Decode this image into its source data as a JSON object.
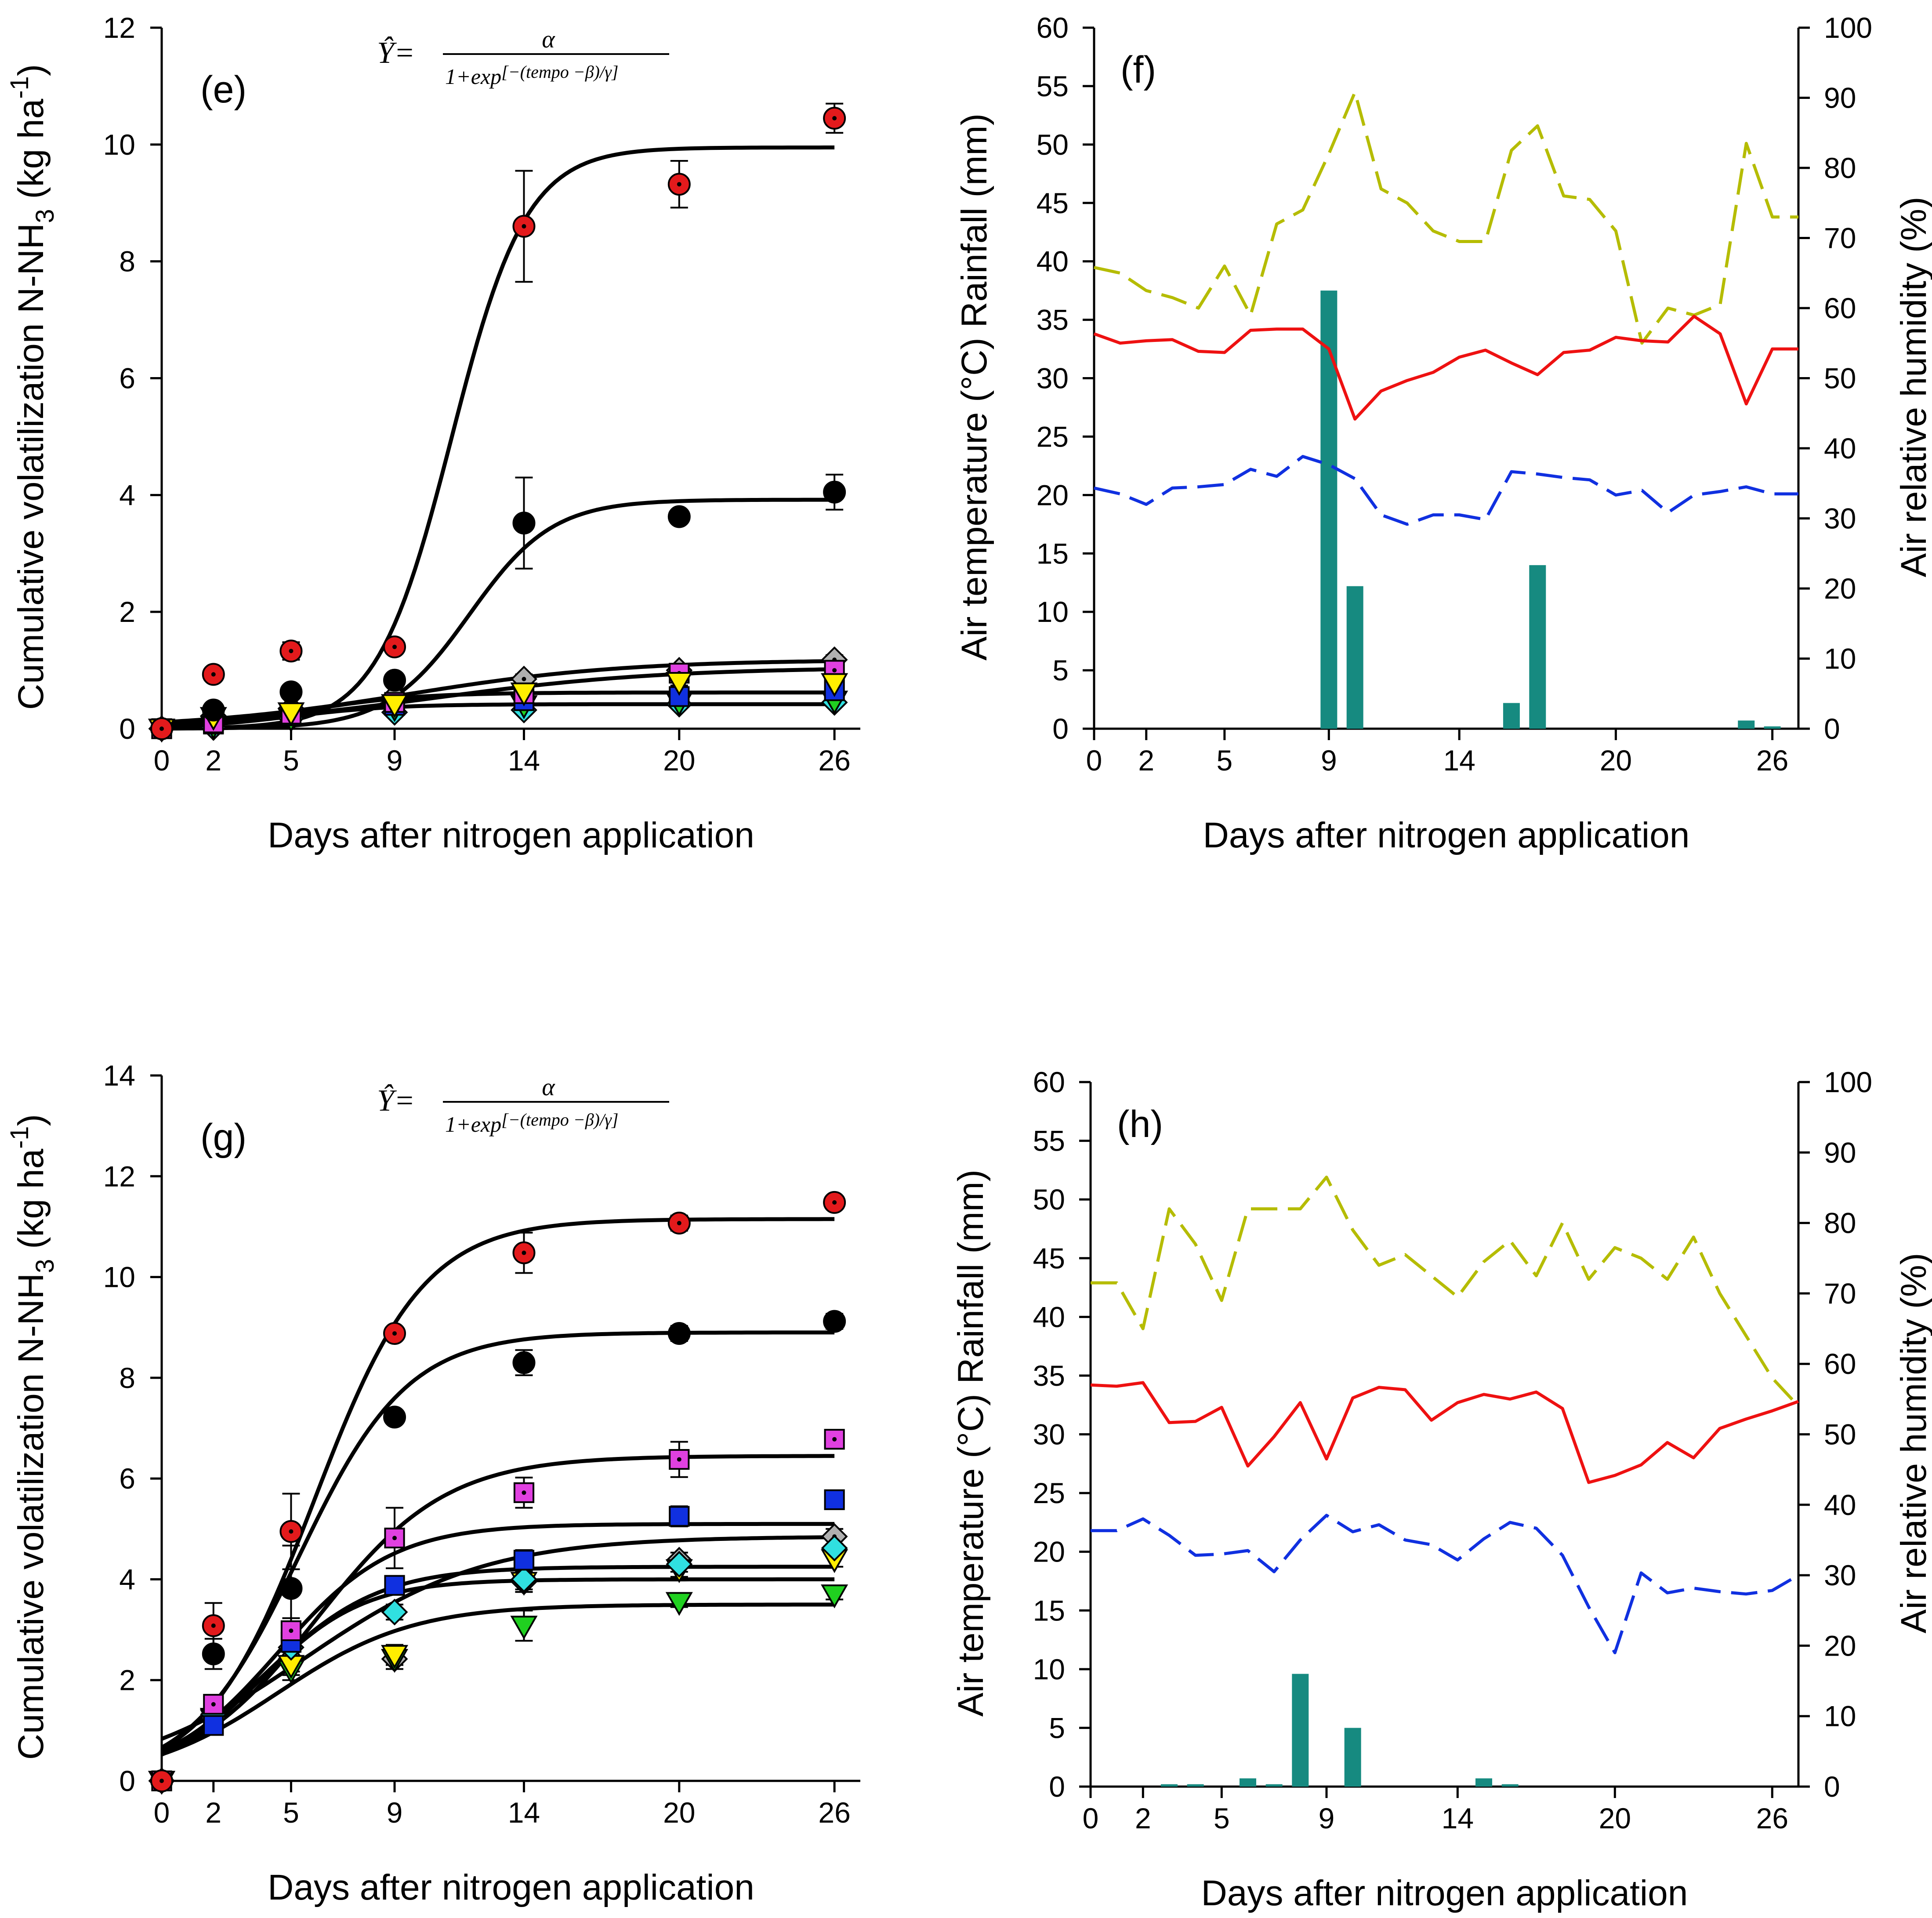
{
  "figure": {
    "description_visible": false
  },
  "chart_data": [
    {
      "id": "e",
      "type": "scatter",
      "panel_label": "(e)",
      "xlabel": "Days after nitrogen application",
      "ylabel_main": "Cumulative volatilization N-NH",
      "ylabel_sub": "3",
      "ylabel_tail": " (kg ha",
      "ylabel_sup": "-1",
      "ylabel_close": ")",
      "equation": {
        "lhs": "Ŷ=",
        "num": "α",
        "den_pre": "1+exp",
        "den_exp": "[−(tempo  −β)/γ]"
      },
      "x_ticks": [
        0,
        2,
        5,
        9,
        14,
        20,
        26
      ],
      "y_ticks": [
        0,
        2,
        4,
        6,
        8,
        10,
        12
      ],
      "xlim": [
        0,
        27
      ],
      "ylim": [
        0,
        12
      ],
      "x": [
        0,
        2,
        5,
        9,
        14,
        20,
        26
      ],
      "series": [
        {
          "name": "red",
          "marker": "circle-dot",
          "color": "#e31a1c",
          "values": [
            0,
            0.93,
            1.33,
            1.4,
            8.6,
            9.32,
            10.45
          ],
          "errors": [
            0,
            0.07,
            0.15,
            0.07,
            0.95,
            0.4,
            0.25
          ]
        },
        {
          "name": "black",
          "marker": "circle",
          "color": "#000000",
          "values": [
            0,
            0.32,
            0.63,
            0.83,
            3.52,
            3.63,
            4.05
          ],
          "errors": [
            0,
            0.05,
            0.08,
            0.08,
            0.78,
            0.1,
            0.3
          ]
        },
        {
          "name": "yellow",
          "marker": "triangle-down",
          "color": "#ffee00",
          "values": [
            0,
            0.2,
            0.28,
            0.42,
            0.62,
            0.8,
            0.78
          ],
          "errors": [
            0,
            0.03,
            0.05,
            0.05,
            0.05,
            0.06,
            0.06
          ]
        },
        {
          "name": "magenta",
          "marker": "square-dot",
          "color": "#e040e0",
          "values": [
            0,
            0.1,
            0.25,
            0.45,
            0.6,
            0.95,
            1.0
          ],
          "errors": [
            0,
            0.03,
            0.05,
            0.05,
            0.05,
            0.06,
            0.06
          ]
        },
        {
          "name": "blue",
          "marker": "square",
          "color": "#1030e0",
          "values": [
            0,
            0.08,
            0.22,
            0.4,
            0.48,
            0.55,
            0.65
          ],
          "errors": [
            0,
            0.03,
            0.04,
            0.05,
            0.05,
            0.05,
            0.05
          ]
        },
        {
          "name": "green",
          "marker": "triangle-down",
          "color": "#20d020",
          "values": [
            0,
            0.05,
            0.18,
            0.35,
            0.4,
            0.45,
            0.48
          ],
          "errors": [
            0,
            0.02,
            0.04,
            0.04,
            0.04,
            0.04,
            0.04
          ]
        },
        {
          "name": "cyan",
          "marker": "diamond",
          "color": "#30e0e0",
          "values": [
            0,
            0.02,
            0.18,
            0.28,
            0.32,
            0.42,
            0.45
          ],
          "errors": [
            0,
            0.02,
            0.04,
            0.04,
            0.04,
            0.04,
            0.04
          ]
        },
        {
          "name": "gray",
          "marker": "diamond-dot",
          "color": "#b0b0b0",
          "values": [
            0,
            0.22,
            0.35,
            0.55,
            0.85,
            1.0,
            1.18
          ],
          "errors": [
            0,
            0.04,
            0.06,
            0.06,
            0.08,
            0.08,
            0.08
          ]
        }
      ],
      "fits": [
        {
          "a": 9.95,
          "b": 11.2,
          "g": 1.45
        },
        {
          "a": 3.92,
          "b": 11.9,
          "g": 1.6
        },
        {
          "a": 1.18,
          "b": 9.5,
          "g": 4.2
        },
        {
          "a": 1.05,
          "b": 10.5,
          "g": 4.5
        },
        {
          "a": 0.62,
          "b": 5.5,
          "g": 2.2
        },
        {
          "a": 0.42,
          "b": 5.0,
          "g": 2.0
        }
      ]
    },
    {
      "id": "f",
      "type": "line",
      "panel_label": "(f)",
      "xlabel": "Days after nitrogen application",
      "ylabel_left": "Air temperature (°C) Rainfall (mm)",
      "ylabel_right": "Air relative humidity (%)",
      "x_ticks": [
        0,
        2,
        5,
        9,
        14,
        20,
        26
      ],
      "y_ticks_left": [
        0,
        5,
        10,
        15,
        20,
        25,
        30,
        35,
        40,
        45,
        50,
        55,
        60
      ],
      "y_ticks_right": [
        0,
        10,
        20,
        30,
        40,
        50,
        60,
        70,
        80,
        90,
        100
      ],
      "xlim": [
        0,
        27
      ],
      "ylim_left": [
        0,
        60
      ],
      "ylim_right": [
        0,
        100
      ],
      "rainfall_bars": {
        "color": "#168a80",
        "x": [
          9,
          10,
          16,
          17,
          25,
          26
        ],
        "values": [
          37.5,
          12.2,
          2.2,
          14.0,
          0.7,
          0.2
        ]
      },
      "series": [
        {
          "name": "relative humidity (dashed, right axis)",
          "color": "#b5bc00",
          "axis": "right",
          "dashed": true,
          "x": [
            0,
            1,
            2,
            3,
            4,
            5,
            6,
            7,
            8,
            9,
            10,
            11,
            12,
            13,
            14,
            15,
            16,
            17,
            18,
            19,
            20,
            21,
            22,
            23,
            24,
            25,
            26,
            27
          ],
          "values": [
            65.8,
            65,
            62.5,
            61.5,
            60,
            66,
            59,
            72,
            74,
            82,
            90.8,
            77,
            75,
            71,
            69.5,
            69.5,
            82.5,
            86,
            76,
            75.5,
            71,
            55,
            60,
            59,
            60.5,
            83.5,
            73,
            73
          ]
        },
        {
          "name": "air temperature (solid)",
          "color": "#ee1111",
          "axis": "left",
          "dashed": false,
          "x": [
            0,
            1,
            2,
            3,
            4,
            5,
            6,
            7,
            8,
            9,
            10,
            11,
            12,
            13,
            14,
            15,
            16,
            17,
            18,
            19,
            20,
            21,
            22,
            23,
            24,
            25,
            26,
            27
          ],
          "values": [
            33.8,
            33,
            33.2,
            33.3,
            32.3,
            32.2,
            34.1,
            34.2,
            34.2,
            32.5,
            26.5,
            28.9,
            29.8,
            30.5,
            31.8,
            32.4,
            31.3,
            30.3,
            32.2,
            32.4,
            33.5,
            33.2,
            33.1,
            35.3,
            33.8,
            27.8,
            32.5,
            32.5
          ]
        },
        {
          "name": "air temperature (dashed)",
          "color": "#1030e0",
          "axis": "left",
          "dashed": true,
          "x": [
            0,
            1,
            2,
            3,
            4,
            5,
            6,
            7,
            8,
            9,
            10,
            11,
            12,
            13,
            14,
            15,
            16,
            17,
            18,
            19,
            20,
            21,
            22,
            23,
            24,
            25,
            26,
            27
          ],
          "values": [
            20.6,
            20.1,
            19.2,
            20.6,
            20.7,
            20.9,
            22.2,
            21.6,
            23.3,
            22.6,
            21.4,
            18.3,
            17.5,
            18.3,
            18.3,
            17.9,
            22,
            21.8,
            21.5,
            21.3,
            20,
            20.4,
            18.5,
            20,
            20.3,
            20.7,
            20.1,
            20.1
          ]
        }
      ]
    },
    {
      "id": "g",
      "type": "scatter",
      "panel_label": "(g)",
      "xlabel": "Days after nitrogen application",
      "ylabel_main": "Cumulative volatilization N-NH",
      "ylabel_sub": "3",
      "ylabel_tail": " (kg ha",
      "ylabel_sup": "-1",
      "ylabel_close": ")",
      "equation": {
        "lhs": "Ŷ=",
        "num": "α",
        "den_pre": "1+exp",
        "den_exp": "[−(tempo  −β)/γ]"
      },
      "x_ticks": [
        0,
        2,
        5,
        9,
        14,
        20,
        26
      ],
      "y_ticks": [
        0,
        2,
        4,
        6,
        8,
        10,
        12,
        14
      ],
      "xlim": [
        0,
        27
      ],
      "ylim": [
        0,
        14
      ],
      "x": [
        0,
        2,
        5,
        9,
        14,
        20,
        26
      ],
      "series": [
        {
          "name": "red",
          "marker": "circle-dot",
          "color": "#e31a1c",
          "values": [
            0,
            3.08,
            4.95,
            8.88,
            10.48,
            11.07,
            11.48
          ],
          "errors": [
            0,
            0.45,
            0.75,
            0.1,
            0.4,
            0.15,
            0.1
          ]
        },
        {
          "name": "black",
          "marker": "circle",
          "color": "#000000",
          "values": [
            0,
            2.52,
            3.82,
            7.22,
            8.3,
            8.88,
            9.12
          ],
          "errors": [
            0,
            0.3,
            0.85,
            0.1,
            0.25,
            0.15,
            0.15
          ]
        },
        {
          "name": "magenta",
          "marker": "square-dot",
          "color": "#e040e0",
          "values": [
            0,
            1.52,
            2.98,
            4.82,
            5.72,
            6.38,
            6.78
          ],
          "errors": [
            0,
            0.15,
            0.25,
            0.6,
            0.3,
            0.35,
            0.15
          ]
        },
        {
          "name": "blue",
          "marker": "square",
          "color": "#1030e0",
          "values": [
            0,
            1.1,
            2.75,
            3.88,
            4.38,
            5.25,
            5.58
          ],
          "errors": [
            0,
            0.15,
            0.2,
            0.15,
            0.2,
            0.2,
            0.1
          ]
        },
        {
          "name": "cyan",
          "marker": "diamond",
          "color": "#30e0e0",
          "values": [
            0,
            1.32,
            2.65,
            3.35,
            4.0,
            4.3,
            4.62
          ],
          "errors": [
            0,
            0.15,
            0.2,
            0.15,
            0.2,
            0.15,
            0.15
          ]
        },
        {
          "name": "yellow",
          "marker": "triangle-down",
          "color": "#ffee00",
          "values": [
            0,
            1.25,
            2.3,
            2.5,
            3.95,
            4.2,
            4.4
          ],
          "errors": [
            0,
            0.15,
            0.2,
            0.2,
            0.2,
            0.15,
            0.15
          ]
        },
        {
          "name": "green",
          "marker": "triangle-down",
          "color": "#20d020",
          "values": [
            0,
            1.22,
            2.2,
            2.42,
            3.08,
            3.55,
            3.7
          ],
          "errors": [
            0,
            0.15,
            0.2,
            0.2,
            0.3,
            0.1,
            0.1
          ]
        },
        {
          "name": "gray",
          "marker": "diamond-dot",
          "color": "#b0b0b0",
          "values": [
            0,
            1.25,
            2.42,
            2.42,
            3.95,
            4.38,
            4.85
          ],
          "errors": [
            0,
            0.2,
            0.25,
            0.2,
            0.2,
            0.15,
            0.15
          ]
        }
      ],
      "fits": [
        {
          "a": 11.15,
          "b": 5.9,
          "g": 2.1
        },
        {
          "a": 8.9,
          "b": 5.3,
          "g": 2.1
        },
        {
          "a": 6.45,
          "b": 6.0,
          "g": 2.5
        },
        {
          "a": 5.1,
          "b": 4.5,
          "g": 2.2
        },
        {
          "a": 4.85,
          "b": 5.5,
          "g": 3.5
        },
        {
          "a": 4.25,
          "b": 4.0,
          "g": 2.2
        },
        {
          "a": 4.0,
          "b": 3.8,
          "g": 2.0
        },
        {
          "a": 3.5,
          "b": 4.5,
          "g": 2.6
        }
      ]
    },
    {
      "id": "h",
      "type": "line",
      "panel_label": "(h)",
      "xlabel": "Days after nitrogen application",
      "ylabel_left": "Air temperature (°C) Rainfall (mm)",
      "ylabel_right": "Air relative humidity (%)",
      "x_ticks": [
        0,
        2,
        5,
        9,
        14,
        20,
        26
      ],
      "y_ticks_left": [
        0,
        5,
        10,
        15,
        20,
        25,
        30,
        35,
        40,
        45,
        50,
        55,
        60
      ],
      "y_ticks_right": [
        0,
        10,
        20,
        30,
        40,
        50,
        60,
        70,
        80,
        90,
        100
      ],
      "xlim": [
        0,
        27
      ],
      "ylim_left": [
        0,
        60
      ],
      "ylim_right": [
        0,
        100
      ],
      "rainfall_bars": {
        "color": "#168a80",
        "x": [
          3,
          4,
          6,
          7,
          8,
          10,
          15,
          16
        ],
        "values": [
          0.2,
          0.2,
          0.7,
          0.2,
          9.6,
          5.0,
          0.7,
          0.2
        ]
      },
      "series": [
        {
          "name": "relative humidity (dashed, right axis)",
          "color": "#b5bc00",
          "axis": "right",
          "dashed": true,
          "x": [
            0,
            1,
            2,
            3,
            4,
            5,
            6,
            7,
            8,
            9,
            10,
            11,
            12,
            13,
            14,
            15,
            16,
            17,
            18,
            19,
            20,
            21,
            22,
            23,
            24,
            25,
            26,
            27
          ],
          "values": [
            71.5,
            71.5,
            65,
            82,
            77,
            69,
            82,
            82,
            82,
            86.5,
            79,
            74,
            75.5,
            72.5,
            69.5,
            74.5,
            77.5,
            72.5,
            80,
            72,
            76.5,
            75,
            72,
            78,
            70,
            64,
            58,
            54
          ]
        },
        {
          "name": "air temperature (solid)",
          "color": "#ee1111",
          "axis": "left",
          "dashed": false,
          "x": [
            0,
            1,
            2,
            3,
            4,
            5,
            6,
            7,
            8,
            9,
            10,
            11,
            12,
            13,
            14,
            15,
            16,
            17,
            18,
            19,
            20,
            21,
            22,
            23,
            24,
            25,
            26,
            27
          ],
          "values": [
            34.2,
            34.1,
            34.4,
            31,
            31.1,
            32.3,
            27.3,
            29.8,
            32.7,
            27.9,
            33.1,
            34,
            33.8,
            31.2,
            32.7,
            33.4,
            33,
            33.6,
            32.2,
            25.9,
            26.5,
            27.4,
            29.3,
            28,
            30.5,
            31.3,
            32,
            32.8
          ]
        },
        {
          "name": "air temperature (dashed)",
          "color": "#1030e0",
          "axis": "left",
          "dashed": true,
          "x": [
            0,
            1,
            2,
            3,
            4,
            5,
            6,
            7,
            8,
            9,
            10,
            11,
            12,
            13,
            14,
            15,
            16,
            17,
            18,
            19,
            20,
            21,
            22,
            23,
            24,
            25,
            26,
            27
          ],
          "values": [
            21.8,
            21.8,
            22.8,
            21.4,
            19.7,
            19.8,
            20.1,
            18.3,
            21,
            23.1,
            21.7,
            22.3,
            21,
            20.6,
            19.3,
            21.1,
            22.5,
            22,
            19.7,
            15.3,
            11.4,
            18.2,
            16.5,
            16.9,
            16.6,
            16.4,
            16.7,
            18
          ]
        }
      ]
    }
  ]
}
